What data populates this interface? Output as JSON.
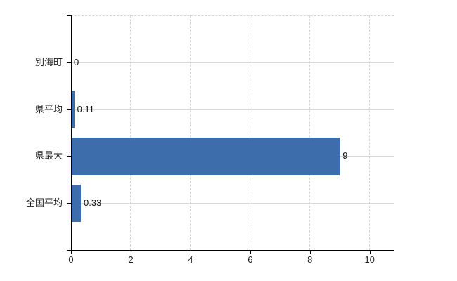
{
  "chart_data": {
    "type": "bar",
    "orientation": "horizontal",
    "title": "",
    "xlabel": "",
    "ylabel": "",
    "categories": [
      "別海町",
      "県平均",
      "県最大",
      "全国平均"
    ],
    "values": [
      0,
      0.11,
      9,
      0.33
    ],
    "value_labels": [
      "0",
      "0.11",
      "9",
      "0.33"
    ],
    "x_ticks": [
      0,
      2,
      4,
      6,
      8,
      10
    ],
    "x_tick_labels": [
      "0",
      "2",
      "4",
      "6",
      "8",
      "10"
    ],
    "xlim": [
      0,
      10.8
    ],
    "legend": "none",
    "grid": {
      "vertical_gridlines": "dashed",
      "horizontal_gridlines": "solid",
      "top_border": "dashed"
    },
    "colors": {
      "bar": "#3e6dab",
      "axis": "#000000",
      "text": "#1f1f1f",
      "h_grid": "#d6dad6",
      "v_grid": "#d4d4dd"
    }
  }
}
